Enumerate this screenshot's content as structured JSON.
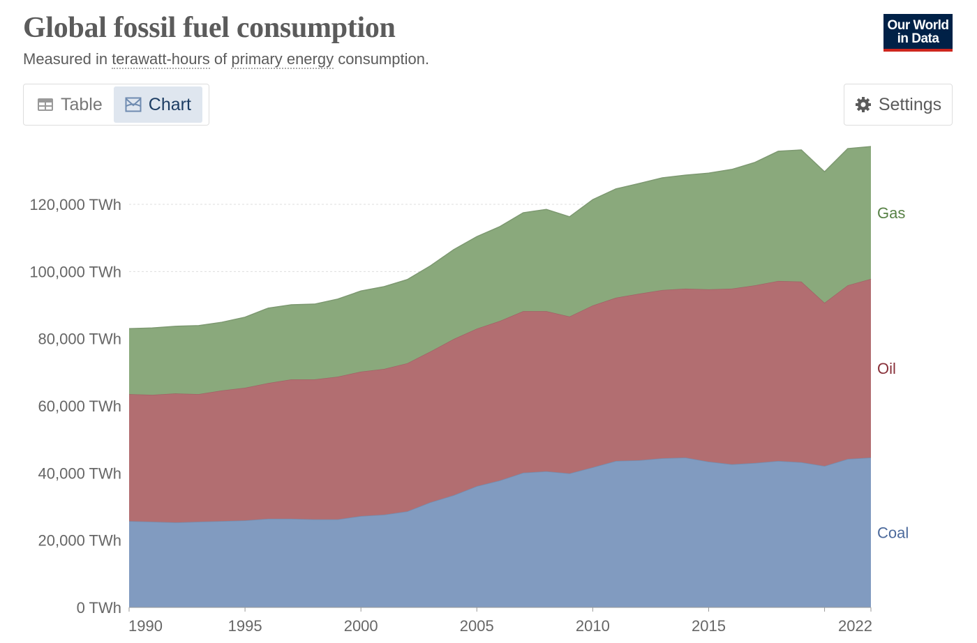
{
  "header": {
    "title": "Global fossil fuel consumption",
    "subtitle_prefix": "Measured in ",
    "subtitle_link1": "terawatt-hours",
    "subtitle_mid": " of ",
    "subtitle_link2": "primary energy",
    "subtitle_suffix": " consumption.",
    "logo_text": "Our World in Data"
  },
  "tabs": [
    {
      "label": "Table",
      "icon": "table-icon",
      "active": false
    },
    {
      "label": "Chart",
      "icon": "chart-icon",
      "active": true
    }
  ],
  "settings": {
    "label": "Settings",
    "icon": "gear-icon"
  },
  "chart_data": {
    "type": "area",
    "stacked": true,
    "title": "Global fossil fuel consumption",
    "ylabel": "TWh",
    "ylim": [
      0,
      140000
    ],
    "yticks": [
      0,
      20000,
      40000,
      60000,
      80000,
      100000,
      120000
    ],
    "ytick_labels": [
      "0 TWh",
      "20,000 TWh",
      "40,000 TWh",
      "60,000 TWh",
      "80,000 TWh",
      "100,000 TWh",
      "120,000 TWh"
    ],
    "xticks": [
      1990,
      1995,
      2000,
      2005,
      2010,
      2015,
      2022
    ],
    "xtick_labels": [
      "1990",
      "1995",
      "2000",
      "2005",
      "2010",
      "2015",
      "2022"
    ],
    "grid": "horizontal dashed",
    "legend": "right (inline labels)",
    "x": [
      1990,
      1991,
      1992,
      1993,
      1994,
      1995,
      1996,
      1997,
      1998,
      1999,
      2000,
      2001,
      2002,
      2003,
      2004,
      2005,
      2006,
      2007,
      2008,
      2009,
      2010,
      2011,
      2012,
      2013,
      2014,
      2015,
      2016,
      2017,
      2018,
      2019,
      2020,
      2021,
      2022
    ],
    "series": [
      {
        "name": "Coal",
        "fill": "#819bc0",
        "label_color": "#4c6a9c",
        "values": [
          25700,
          25500,
          25300,
          25500,
          25700,
          25900,
          26400,
          26400,
          26200,
          26200,
          27200,
          27600,
          28600,
          31300,
          33400,
          36100,
          37800,
          40100,
          40500,
          39900,
          41700,
          43600,
          43800,
          44400,
          44600,
          43400,
          42600,
          43000,
          43600,
          43200,
          42100,
          44200,
          44600
        ]
      },
      {
        "name": "Oil",
        "fill": "#b26e71",
        "label_color": "#883039",
        "values": [
          37800,
          37800,
          38400,
          38000,
          38900,
          39500,
          40400,
          41500,
          41700,
          42500,
          43000,
          43400,
          44100,
          44900,
          46500,
          46900,
          47500,
          48100,
          47700,
          46700,
          48200,
          48600,
          49600,
          50100,
          50300,
          51300,
          52300,
          52900,
          53600,
          53800,
          48600,
          51700,
          53200
        ]
      },
      {
        "name": "Gas",
        "fill": "#8aa97c",
        "label_color": "#578145",
        "values": [
          19500,
          19900,
          20000,
          20400,
          20300,
          21000,
          22300,
          22200,
          22400,
          23100,
          24000,
          24500,
          24900,
          25500,
          26600,
          27400,
          28100,
          29300,
          30300,
          29700,
          31500,
          32400,
          32800,
          33400,
          33800,
          34600,
          35500,
          36600,
          38600,
          39200,
          39000,
          40700,
          39400
        ]
      }
    ]
  }
}
